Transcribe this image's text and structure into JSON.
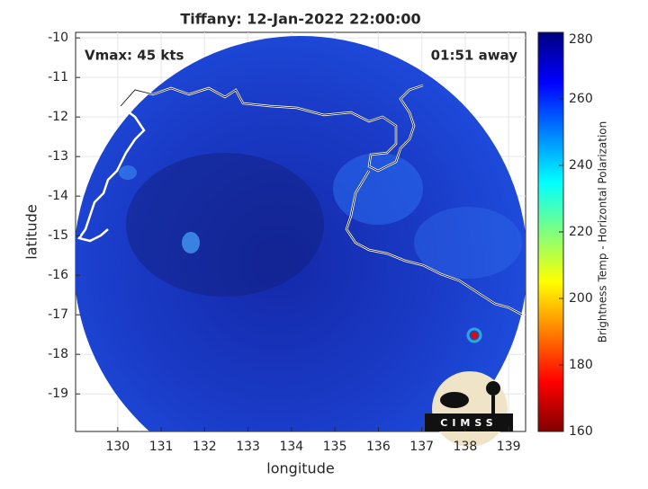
{
  "chart_data": {
    "type": "map",
    "title": "Tiffany: 12-Jan-2022 22:00:00",
    "annotations": [
      "Vmax: 45 kts",
      "01:51 away"
    ],
    "xlabel": "longitude",
    "ylabel": "latitude",
    "xlim": [
      129.03,
      139.39
    ],
    "ylim": [
      -19.95,
      -9.86
    ],
    "xticks": [
      130,
      131,
      132,
      133,
      134,
      135,
      136,
      137,
      138,
      139
    ],
    "yticks": [
      -10,
      -11,
      -12,
      -13,
      -14,
      -15,
      -16,
      -17,
      -18,
      -19
    ],
    "grid": true,
    "colorbar": {
      "label": "Brightness Temp - Horizontal Polarization",
      "lim": [
        160,
        280
      ],
      "ticks": [
        160,
        180,
        200,
        220,
        240,
        260,
        280
      ]
    },
    "logo": "CIMSS"
  }
}
